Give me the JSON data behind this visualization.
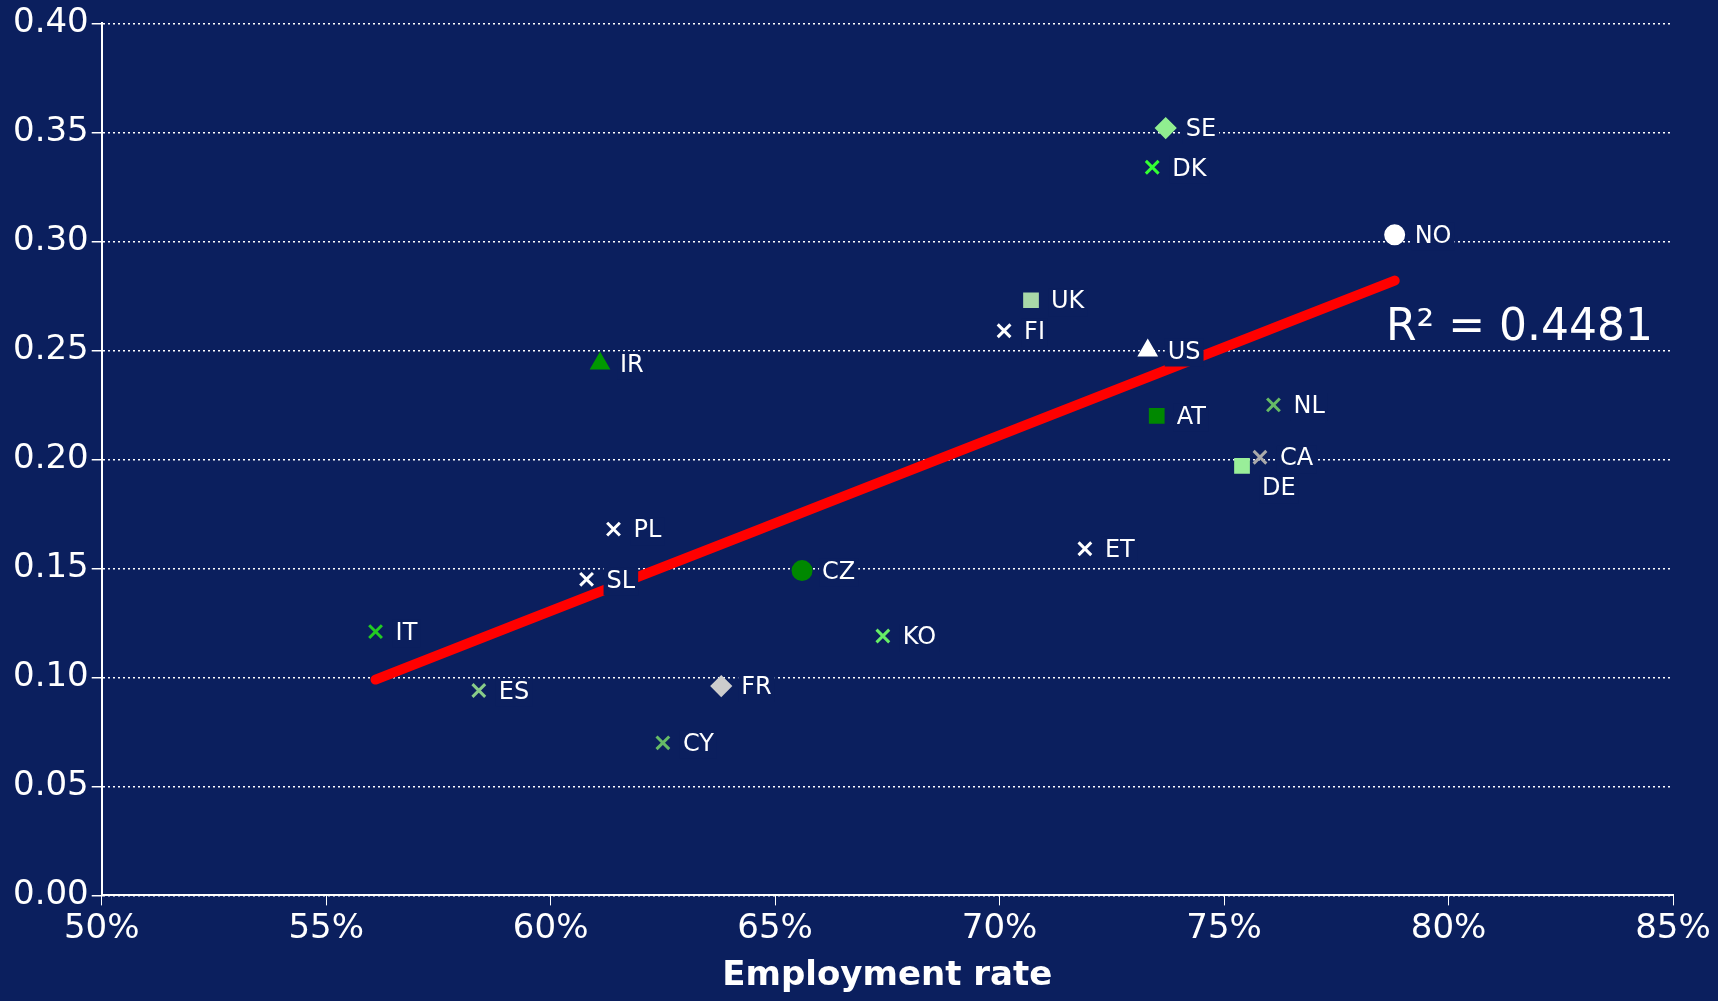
{
  "chart_data": {
    "type": "scatter",
    "xlabel": "Employment rate",
    "annotations": [
      "R² = 0.4481"
    ],
    "xlim": [
      50,
      85
    ],
    "xticks": [
      {
        "value": 50,
        "label": "50%"
      },
      {
        "value": 55,
        "label": "55%"
      },
      {
        "value": 60,
        "label": "60%"
      },
      {
        "value": 65,
        "label": "65%"
      },
      {
        "value": 70,
        "label": "70%"
      },
      {
        "value": 75,
        "label": "75%"
      },
      {
        "value": 80,
        "label": "80%"
      },
      {
        "value": 85,
        "label": "85%"
      }
    ],
    "ylim": [
      0,
      0.4
    ],
    "yticks": [
      {
        "value": 0,
        "label": "0.00"
      },
      {
        "value": 0.05,
        "label": "0.05"
      },
      {
        "value": 0.1,
        "label": "0.10"
      },
      {
        "value": 0.15,
        "label": "0.15"
      },
      {
        "value": 0.2,
        "label": "0.20"
      },
      {
        "value": 0.25,
        "label": "0.25"
      },
      {
        "value": 0.3,
        "label": "0.30"
      },
      {
        "value": 0.35,
        "label": "0.35"
      },
      {
        "value": 0.4,
        "label": "0.40"
      }
    ],
    "grid": "y",
    "legend": false,
    "series": [
      {
        "type": "line",
        "color": "#ff0000",
        "x": [
          56.1,
          78.8
        ],
        "values": [
          0.099,
          0.282
        ],
        "marker": "none"
      },
      {
        "name": "SE",
        "color": "#90ee90",
        "x": [
          73.7
        ],
        "values": [
          0.352
        ],
        "marker": "diamond"
      },
      {
        "name": "DK",
        "color": "#33ff33",
        "x": [
          73.4
        ],
        "values": [
          0.334
        ],
        "marker": "cross"
      },
      {
        "name": "NO",
        "color": "#ffffff",
        "x": [
          78.8
        ],
        "values": [
          0.303
        ],
        "marker": "circle"
      },
      {
        "name": "UK",
        "color": "#a8d8a8",
        "x": [
          70.7
        ],
        "values": [
          0.273
        ],
        "marker": "square"
      },
      {
        "name": "FI",
        "color": "#ffffff",
        "x": [
          70.1
        ],
        "values": [
          0.259
        ],
        "marker": "cross"
      },
      {
        "name": "US",
        "color": "#ffffff",
        "x": [
          73.3
        ],
        "values": [
          0.25
        ],
        "marker": "triangle"
      },
      {
        "name": "IR",
        "color": "#009900",
        "x": [
          61.1
        ],
        "values": [
          0.244
        ],
        "marker": "triangle"
      },
      {
        "name": "NL",
        "color": "#66bb66",
        "x": [
          76.1
        ],
        "values": [
          0.225
        ],
        "marker": "cross"
      },
      {
        "name": "AT",
        "color": "#008800",
        "x": [
          73.5
        ],
        "values": [
          0.22
        ],
        "marker": "square"
      },
      {
        "name": "CA",
        "color": "#aaaaaa",
        "x": [
          75.8
        ],
        "values": [
          0.201
        ],
        "marker": "cross"
      },
      {
        "name": "DE",
        "color": "#99ee99",
        "x": [
          75.4
        ],
        "values": [
          0.197
        ],
        "marker": "square"
      },
      {
        "name": "PL",
        "color": "#ffffff",
        "x": [
          61.4
        ],
        "values": [
          0.168
        ],
        "marker": "cross"
      },
      {
        "name": "ET",
        "color": "#ffffff",
        "x": [
          71.9
        ],
        "values": [
          0.159
        ],
        "marker": "cross"
      },
      {
        "name": "CZ",
        "color": "#008800",
        "x": [
          65.6
        ],
        "values": [
          0.149
        ],
        "marker": "circle"
      },
      {
        "name": "SL",
        "color": "#ffffff",
        "x": [
          60.8
        ],
        "values": [
          0.145
        ],
        "marker": "cross"
      },
      {
        "name": "IT",
        "color": "#22cc22",
        "x": [
          56.1
        ],
        "values": [
          0.121
        ],
        "marker": "cross"
      },
      {
        "name": "KO",
        "color": "#66ee66",
        "x": [
          67.4
        ],
        "values": [
          0.119
        ],
        "marker": "cross"
      },
      {
        "name": "ES",
        "color": "#88cc88",
        "x": [
          58.4
        ],
        "values": [
          0.094
        ],
        "marker": "cross"
      },
      {
        "name": "FR",
        "color": "#cccccc",
        "x": [
          63.8
        ],
        "values": [
          0.096
        ],
        "marker": "diamond"
      },
      {
        "name": "CY",
        "color": "#66bb66",
        "x": [
          62.5
        ],
        "values": [
          0.07
        ],
        "marker": "cross"
      }
    ]
  }
}
